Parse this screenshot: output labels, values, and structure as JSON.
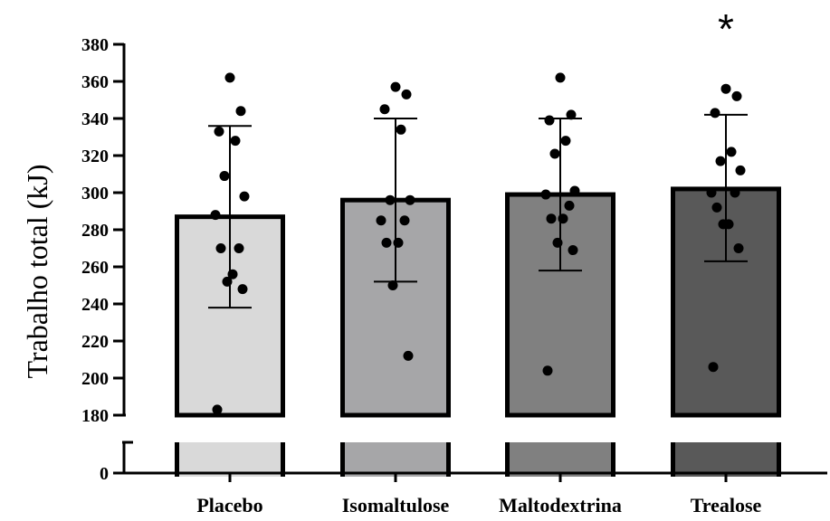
{
  "chart_data": {
    "type": "bar",
    "title": "",
    "xlabel": "",
    "ylabel": "Trabalho total (kJ)",
    "categories": [
      "Placebo",
      "Isomaltulose",
      "Maltodextrina",
      "Trealose"
    ],
    "values": [
      287,
      296,
      299,
      302
    ],
    "error": [
      {
        "lower": 238,
        "upper": 336
      },
      {
        "lower": 252,
        "upper": 340
      },
      {
        "lower": 258,
        "upper": 340
      },
      {
        "lower": 263,
        "upper": 342
      }
    ],
    "points": [
      [
        362,
        344,
        333,
        328,
        309,
        298,
        288,
        270,
        270,
        256,
        252,
        248,
        183
      ],
      [
        357,
        353,
        345,
        334,
        296,
        296,
        285,
        285,
        273,
        273,
        250,
        212
      ],
      [
        362,
        342,
        339,
        328,
        321,
        301,
        299,
        293,
        286,
        286,
        273,
        269,
        204
      ],
      [
        356,
        352,
        343,
        322,
        317,
        312,
        300,
        300,
        292,
        283,
        283,
        270,
        206
      ]
    ],
    "significance": [
      "",
      "",
      "",
      "*"
    ],
    "fill_colors": [
      "#d9d9d9",
      "#a6a6a8",
      "#808080",
      "#595959"
    ],
    "y_axis": {
      "ylim": [
        180,
        380
      ],
      "ticks": [
        180,
        200,
        220,
        240,
        260,
        280,
        300,
        320,
        340,
        360,
        380
      ],
      "broken": true,
      "lower_segment_ticks": [
        0
      ]
    },
    "grid": false,
    "legend": "none"
  }
}
